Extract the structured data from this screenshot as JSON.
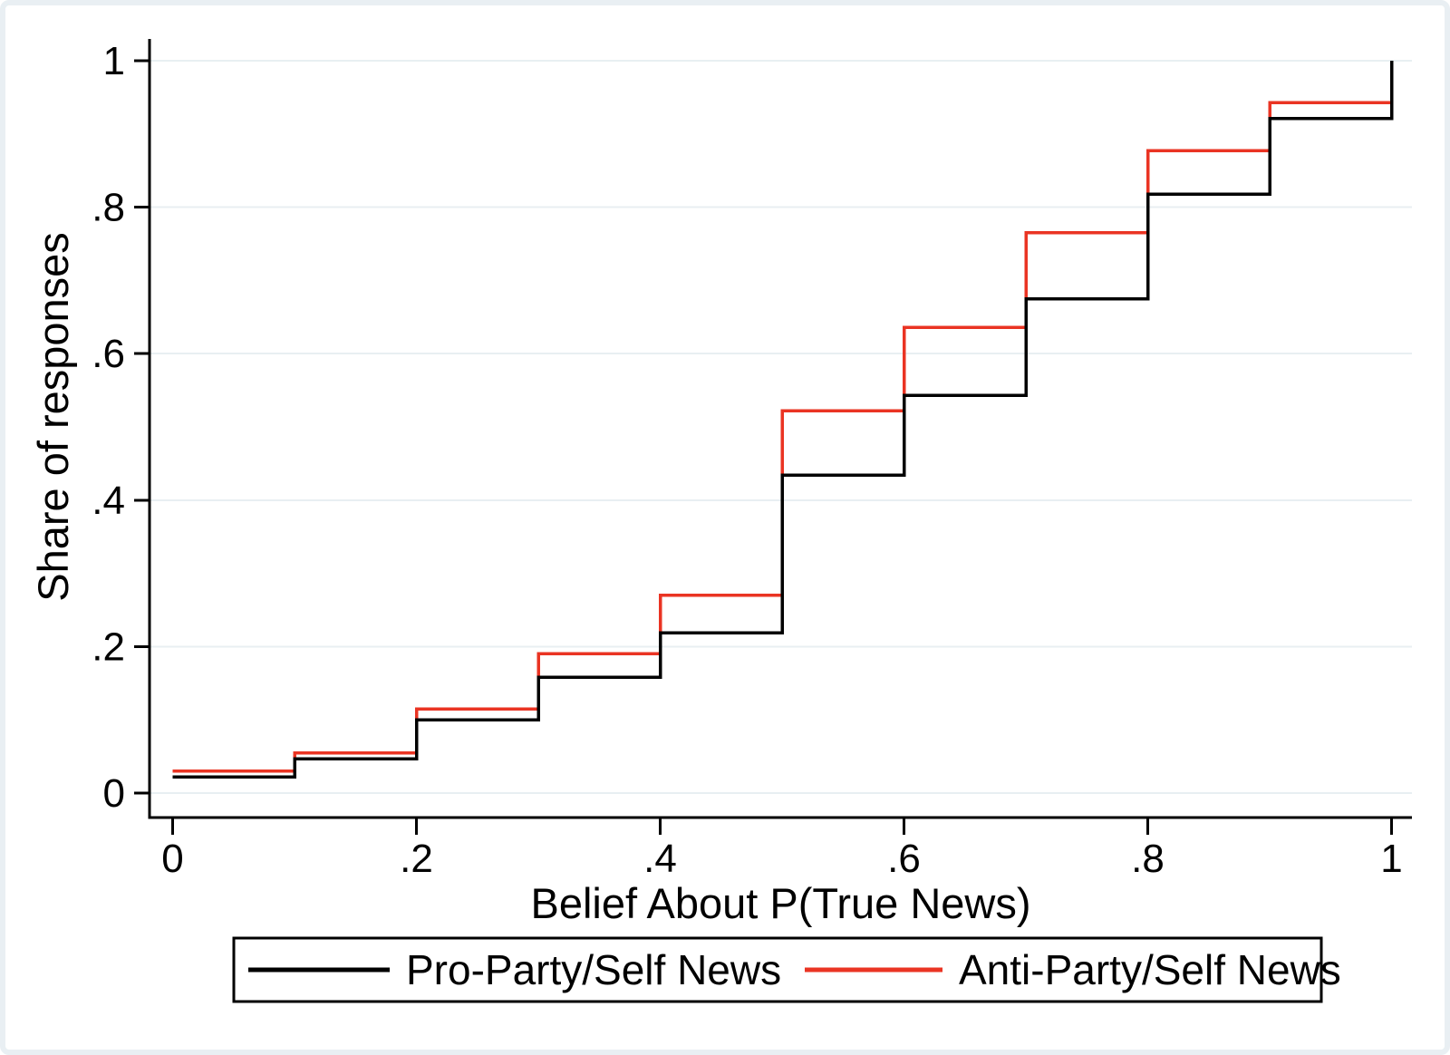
{
  "figure": {
    "background": "#ffffff",
    "frame_color": "#e9eff3"
  },
  "chart_data": {
    "type": "step",
    "subtype": "empirical-cdf",
    "title": "",
    "xlabel": "Belief About P(True News)",
    "ylabel": "Share of responses",
    "xlim": [
      0,
      1
    ],
    "ylim": [
      0,
      1
    ],
    "grid": true,
    "gridline_color": "#e8eff2",
    "axis_color": "#000000",
    "x_breaks": [
      0,
      0.1,
      0.2,
      0.3,
      0.4,
      0.5,
      0.6,
      0.7,
      0.8,
      0.9,
      1.0
    ],
    "xticks": {
      "values": [
        0,
        0.2,
        0.4,
        0.6,
        0.8,
        1.0
      ],
      "labels": [
        "0",
        ".2",
        ".4",
        ".6",
        ".8",
        "1"
      ]
    },
    "yticks": {
      "values": [
        0,
        0.2,
        0.4,
        0.6,
        0.8,
        1.0
      ],
      "labels": [
        "0",
        ".2",
        ".4",
        ".6",
        ".8",
        "1"
      ]
    },
    "series": [
      {
        "name": "Anti-Party/Self News",
        "color": "#ea3423",
        "cdf_at_breaks": [
          0.03,
          0.055,
          0.115,
          0.19,
          0.27,
          0.522,
          0.636,
          0.765,
          0.877,
          0.943,
          1.0
        ]
      },
      {
        "name": "Pro-Party/Self News",
        "color": "#000000",
        "cdf_at_breaks": [
          0.022,
          0.047,
          0.1,
          0.158,
          0.219,
          0.434,
          0.543,
          0.675,
          0.818,
          0.921,
          1.0
        ]
      }
    ],
    "legend": {
      "position": "bottom",
      "border_color": "#000000",
      "entries": [
        {
          "label": "Pro-Party/Self News",
          "color": "#000000"
        },
        {
          "label": "Anti-Party/Self News",
          "color": "#ea3423"
        }
      ]
    }
  }
}
